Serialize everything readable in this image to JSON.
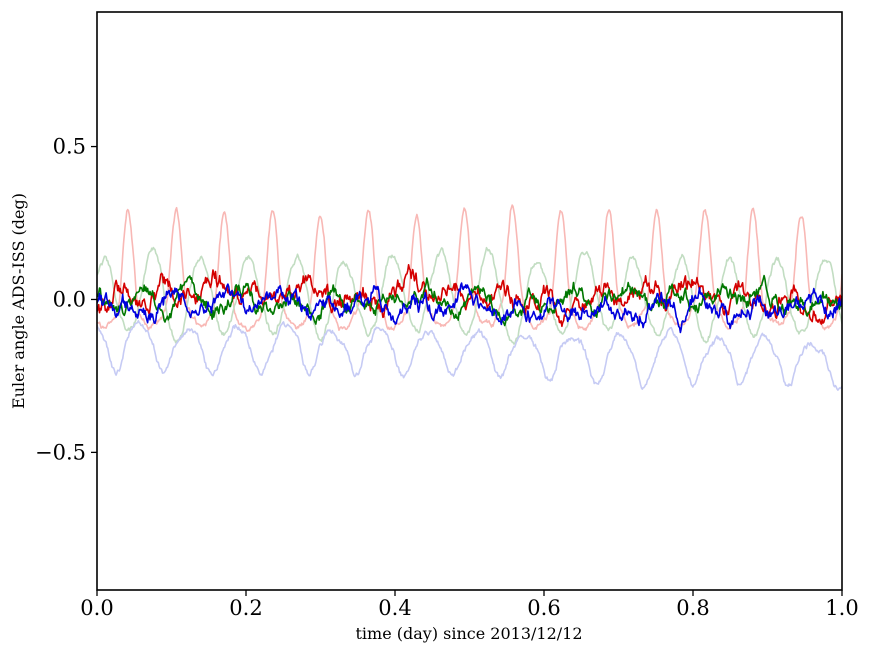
{
  "figure": {
    "background": "#ffffff",
    "frame_color": "#000000"
  },
  "chart_data": {
    "type": "line",
    "title": "",
    "xlabel": "time (day) since 2013/12/12",
    "ylabel": "Euler angle ADS-ISS (deg)",
    "xlim": [
      0.0,
      1.0
    ],
    "ylim": [
      -0.95,
      0.94
    ],
    "xticks": [
      0.0,
      0.2,
      0.4,
      0.6,
      0.8,
      1.0
    ],
    "xtick_labels": [
      "0.0",
      "0.2",
      "0.4",
      "0.6",
      "0.8",
      "1.0"
    ],
    "yticks": [
      -0.5,
      0.0,
      0.5
    ],
    "ytick_labels": [
      "−0.5",
      "0.0",
      "0.5"
    ],
    "grid": false,
    "legend": null,
    "n_points": 900,
    "seed": 20131212,
    "orbital_cycles_per_day": 15.5,
    "series": [
      {
        "name": "red-faded",
        "color": "#f8b8b5",
        "line_width": 1.6,
        "approx_mean": 0.05,
        "approx_min": -0.1,
        "approx_max": 0.28,
        "description": "pale red orbital oscillation, sharp positive peaks ~0.25-0.30 each orbit",
        "params": {
          "offset": -0.05,
          "drift": 0.02,
          "cycles": 15.5,
          "phase": 0.6,
          "amp_pos": 0.33,
          "sharp_pos": 2.2,
          "amp_neg": 0.05,
          "sharp_neg": 1.0,
          "noise": 0.012,
          "jitter": 0.002
        }
      },
      {
        "name": "green-faded",
        "color": "#c2ddc2",
        "line_width": 1.6,
        "approx_mean": 0.0,
        "approx_min": -0.12,
        "approx_max": 0.15,
        "description": "pale green orbital oscillation centered near 0",
        "params": {
          "offset": 0.0,
          "drift": 0.0,
          "cycles": 15.5,
          "phase": 0.1,
          "amp_pos": 0.14,
          "sharp_pos": 1.0,
          "amp_neg": 0.12,
          "sharp_neg": 1.0,
          "noise": 0.013,
          "jitter": 0.002
        }
      },
      {
        "name": "blue-faded",
        "color": "#c6cbf4",
        "line_width": 1.6,
        "approx_mean": -0.17,
        "approx_min": -0.27,
        "approx_max": -0.08,
        "description": "pale blue orbital oscillation around -0.15, drifting slowly downward",
        "params": {
          "offset": -0.13,
          "drift": -0.06,
          "cycles": 15.5,
          "phase": 0.35,
          "amp_pos": 0.05,
          "sharp_pos": 1.0,
          "amp_neg": 0.1,
          "sharp_neg": 1.3,
          "noise": 0.012,
          "jitter": 0.002
        }
      },
      {
        "name": "red",
        "color": "#d40000",
        "line_width": 1.6,
        "approx_mean": 0.0,
        "approx_min": -0.12,
        "approx_max": 0.12,
        "description": "bright red noisy line fluctuating near 0",
        "params": {
          "offset": 0.005,
          "drift": 0.0,
          "cycles": 15.5,
          "phase": 0.8,
          "amp_pos": 0.025,
          "sharp_pos": 1.0,
          "amp_neg": 0.03,
          "sharp_neg": 1.0,
          "noise": 0.032,
          "jitter": 0.006
        }
      },
      {
        "name": "green",
        "color": "#007700",
        "line_width": 1.6,
        "approx_mean": 0.0,
        "approx_min": -0.08,
        "approx_max": 0.08,
        "description": "bright green noisy line fluctuating near 0",
        "params": {
          "offset": 0.0,
          "drift": 0.0,
          "cycles": 15.5,
          "phase": 0.3,
          "amp_pos": 0.02,
          "sharp_pos": 1.0,
          "amp_neg": 0.02,
          "sharp_neg": 1.0,
          "noise": 0.026,
          "jitter": 0.005
        }
      },
      {
        "name": "blue",
        "color": "#0000dd",
        "line_width": 1.6,
        "approx_mean": -0.02,
        "approx_min": -0.1,
        "approx_max": 0.07,
        "description": "bright blue noisy line fluctuating slightly below 0",
        "params": {
          "offset": -0.02,
          "drift": 0.0,
          "cycles": 15.5,
          "phase": 0.55,
          "amp_pos": 0.02,
          "sharp_pos": 1.0,
          "amp_neg": 0.02,
          "sharp_neg": 1.0,
          "noise": 0.028,
          "jitter": 0.006
        }
      }
    ]
  }
}
